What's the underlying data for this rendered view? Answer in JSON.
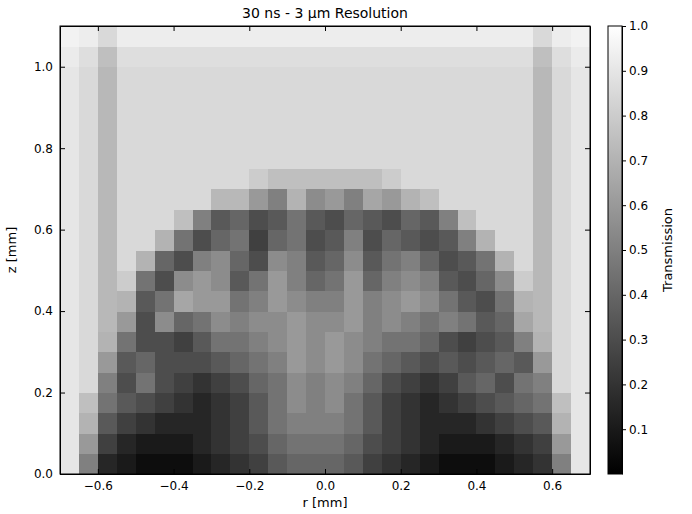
{
  "chart_data": {
    "type": "heatmap",
    "title": "30 ns - 3 μm Resolution",
    "x_label": "r [mm]",
    "y_label": "z [mm]",
    "xlim": [
      -0.7,
      0.7
    ],
    "ylim": [
      0,
      1.1
    ],
    "xticks": [
      {
        "value": -0.6,
        "label": "−0.6"
      },
      {
        "value": -0.4,
        "label": "−0.4"
      },
      {
        "value": -0.2,
        "label": "−0.2"
      },
      {
        "value": 0,
        "label": "0.0"
      },
      0.2,
      0.4,
      0.6
    ],
    "yticks": [
      {
        "value": 0,
        "label": "0.0"
      },
      0.2,
      0.4,
      0.6,
      0.8,
      {
        "value": 1,
        "label": "1.0"
      }
    ],
    "x": [
      -0.675,
      -0.625,
      -0.575,
      -0.525,
      -0.475,
      -0.425,
      -0.375,
      -0.325,
      -0.275,
      -0.225,
      -0.175,
      -0.125,
      -0.075,
      -0.025,
      0.025,
      0.075,
      0.125,
      0.175,
      0.225,
      0.275,
      0.325,
      0.375,
      0.425,
      0.475,
      0.525,
      0.575,
      0.625,
      0.675
    ],
    "y": [
      0.025,
      0.075,
      0.125,
      0.175,
      0.225,
      0.275,
      0.325,
      0.375,
      0.425,
      0.475,
      0.525,
      0.575,
      0.625,
      0.675,
      0.725,
      0.775,
      0.825,
      0.875,
      0.925,
      0.975,
      1.025,
      1.075
    ],
    "values": [
      [
        0.9,
        0.5,
        0.15,
        0.1,
        0.05,
        0.05,
        0.05,
        0.1,
        0.15,
        0.2,
        0.25,
        0.35,
        0.4,
        0.4,
        0.4,
        0.35,
        0.25,
        0.2,
        0.15,
        0.1,
        0.05,
        0.05,
        0.05,
        0.1,
        0.15,
        0.2,
        0.5,
        0.9
      ],
      [
        0.9,
        0.6,
        0.25,
        0.15,
        0.1,
        0.1,
        0.1,
        0.15,
        0.2,
        0.25,
        0.3,
        0.4,
        0.45,
        0.45,
        0.45,
        0.4,
        0.3,
        0.25,
        0.2,
        0.15,
        0.1,
        0.1,
        0.1,
        0.15,
        0.2,
        0.25,
        0.6,
        0.9
      ],
      [
        0.9,
        0.7,
        0.35,
        0.25,
        0.2,
        0.15,
        0.15,
        0.15,
        0.2,
        0.25,
        0.35,
        0.45,
        0.5,
        0.5,
        0.5,
        0.45,
        0.35,
        0.25,
        0.2,
        0.15,
        0.15,
        0.15,
        0.2,
        0.25,
        0.3,
        0.35,
        0.7,
        0.9
      ],
      [
        0.9,
        0.75,
        0.45,
        0.35,
        0.3,
        0.25,
        0.2,
        0.15,
        0.2,
        0.25,
        0.35,
        0.45,
        0.55,
        0.5,
        0.55,
        0.45,
        0.35,
        0.25,
        0.2,
        0.15,
        0.2,
        0.25,
        0.3,
        0.35,
        0.4,
        0.45,
        0.75,
        0.9
      ],
      [
        0.9,
        0.85,
        0.5,
        0.3,
        0.45,
        0.3,
        0.25,
        0.2,
        0.25,
        0.3,
        0.4,
        0.45,
        0.55,
        0.5,
        0.55,
        0.5,
        0.4,
        0.3,
        0.25,
        0.2,
        0.25,
        0.35,
        0.4,
        0.3,
        0.45,
        0.5,
        0.85,
        0.9
      ],
      [
        0.9,
        0.85,
        0.6,
        0.35,
        0.4,
        0.3,
        0.3,
        0.3,
        0.35,
        0.4,
        0.45,
        0.5,
        0.6,
        0.55,
        0.6,
        0.55,
        0.45,
        0.4,
        0.35,
        0.3,
        0.35,
        0.3,
        0.35,
        0.4,
        0.35,
        0.6,
        0.85,
        0.9
      ],
      [
        0.9,
        0.85,
        0.7,
        0.45,
        0.3,
        0.3,
        0.25,
        0.35,
        0.45,
        0.45,
        0.5,
        0.55,
        0.6,
        0.55,
        0.6,
        0.55,
        0.5,
        0.45,
        0.45,
        0.4,
        0.3,
        0.25,
        0.3,
        0.35,
        0.5,
        0.7,
        0.85,
        0.9
      ],
      [
        0.9,
        0.85,
        0.72,
        0.6,
        0.3,
        0.55,
        0.4,
        0.45,
        0.55,
        0.5,
        0.55,
        0.55,
        0.6,
        0.55,
        0.55,
        0.6,
        0.5,
        0.55,
        0.5,
        0.45,
        0.5,
        0.45,
        0.35,
        0.4,
        0.65,
        0.72,
        0.85,
        0.9
      ],
      [
        0.9,
        0.85,
        0.72,
        0.7,
        0.35,
        0.45,
        0.65,
        0.6,
        0.6,
        0.45,
        0.5,
        0.6,
        0.55,
        0.5,
        0.5,
        0.6,
        0.5,
        0.55,
        0.6,
        0.55,
        0.45,
        0.35,
        0.3,
        0.45,
        0.7,
        0.72,
        0.85,
        0.9
      ],
      [
        0.9,
        0.85,
        0.72,
        0.8,
        0.45,
        0.3,
        0.55,
        0.6,
        0.55,
        0.35,
        0.45,
        0.6,
        0.5,
        0.4,
        0.45,
        0.6,
        0.4,
        0.5,
        0.55,
        0.5,
        0.35,
        0.3,
        0.4,
        0.55,
        0.8,
        0.72,
        0.85,
        0.9
      ],
      [
        0.9,
        0.85,
        0.72,
        0.85,
        0.7,
        0.4,
        0.3,
        0.5,
        0.55,
        0.4,
        0.3,
        0.55,
        0.5,
        0.35,
        0.4,
        0.55,
        0.35,
        0.45,
        0.5,
        0.4,
        0.3,
        0.35,
        0.45,
        0.7,
        0.85,
        0.72,
        0.85,
        0.9
      ],
      [
        0.9,
        0.85,
        0.72,
        0.85,
        0.85,
        0.7,
        0.45,
        0.3,
        0.4,
        0.45,
        0.25,
        0.4,
        0.45,
        0.3,
        0.35,
        0.5,
        0.3,
        0.4,
        0.35,
        0.3,
        0.35,
        0.5,
        0.7,
        0.85,
        0.85,
        0.72,
        0.85,
        0.9
      ],
      [
        0.9,
        0.85,
        0.72,
        0.85,
        0.85,
        0.85,
        0.75,
        0.5,
        0.35,
        0.4,
        0.3,
        0.35,
        0.45,
        0.35,
        0.3,
        0.4,
        0.35,
        0.3,
        0.4,
        0.35,
        0.5,
        0.75,
        0.85,
        0.85,
        0.85,
        0.72,
        0.85,
        0.9
      ],
      [
        0.9,
        0.85,
        0.72,
        0.85,
        0.85,
        0.85,
        0.85,
        0.85,
        0.72,
        0.72,
        0.6,
        0.5,
        0.7,
        0.55,
        0.6,
        0.5,
        0.65,
        0.6,
        0.7,
        0.75,
        0.85,
        0.85,
        0.85,
        0.85,
        0.85,
        0.72,
        0.85,
        0.9
      ],
      [
        0.9,
        0.85,
        0.72,
        0.85,
        0.85,
        0.85,
        0.85,
        0.85,
        0.85,
        0.85,
        0.8,
        0.75,
        0.75,
        0.75,
        0.75,
        0.75,
        0.75,
        0.8,
        0.85,
        0.85,
        0.85,
        0.85,
        0.85,
        0.85,
        0.85,
        0.72,
        0.85,
        0.9
      ],
      [
        0.9,
        0.85,
        0.72,
        0.85,
        0.85,
        0.85,
        0.85,
        0.85,
        0.85,
        0.85,
        0.85,
        0.85,
        0.85,
        0.85,
        0.85,
        0.85,
        0.85,
        0.85,
        0.85,
        0.85,
        0.85,
        0.85,
        0.85,
        0.85,
        0.85,
        0.72,
        0.85,
        0.9
      ],
      [
        0.9,
        0.85,
        0.72,
        0.85,
        0.85,
        0.85,
        0.85,
        0.85,
        0.85,
        0.85,
        0.85,
        0.85,
        0.85,
        0.85,
        0.85,
        0.85,
        0.85,
        0.85,
        0.85,
        0.85,
        0.85,
        0.85,
        0.85,
        0.85,
        0.85,
        0.72,
        0.85,
        0.9
      ],
      [
        0.9,
        0.85,
        0.72,
        0.85,
        0.85,
        0.85,
        0.85,
        0.85,
        0.85,
        0.85,
        0.85,
        0.85,
        0.85,
        0.85,
        0.85,
        0.85,
        0.85,
        0.85,
        0.85,
        0.85,
        0.85,
        0.85,
        0.85,
        0.85,
        0.85,
        0.72,
        0.85,
        0.9
      ],
      [
        0.9,
        0.85,
        0.72,
        0.85,
        0.85,
        0.85,
        0.85,
        0.85,
        0.85,
        0.85,
        0.85,
        0.85,
        0.85,
        0.85,
        0.85,
        0.85,
        0.85,
        0.85,
        0.85,
        0.85,
        0.85,
        0.85,
        0.85,
        0.85,
        0.85,
        0.72,
        0.85,
        0.9
      ],
      [
        0.9,
        0.85,
        0.72,
        0.85,
        0.85,
        0.85,
        0.85,
        0.85,
        0.85,
        0.85,
        0.85,
        0.85,
        0.85,
        0.85,
        0.85,
        0.85,
        0.85,
        0.85,
        0.85,
        0.85,
        0.85,
        0.85,
        0.85,
        0.85,
        0.85,
        0.72,
        0.85,
        0.9
      ],
      [
        0.92,
        0.87,
        0.75,
        0.87,
        0.87,
        0.87,
        0.87,
        0.87,
        0.87,
        0.87,
        0.87,
        0.87,
        0.87,
        0.87,
        0.87,
        0.87,
        0.87,
        0.87,
        0.87,
        0.87,
        0.87,
        0.87,
        0.87,
        0.87,
        0.87,
        0.75,
        0.87,
        0.92
      ],
      [
        0.95,
        0.93,
        0.85,
        0.93,
        0.93,
        0.93,
        0.93,
        0.93,
        0.93,
        0.93,
        0.93,
        0.93,
        0.93,
        0.93,
        0.93,
        0.93,
        0.93,
        0.93,
        0.93,
        0.93,
        0.93,
        0.93,
        0.93,
        0.93,
        0.93,
        0.85,
        0.93,
        0.95
      ]
    ],
    "colorbar": {
      "label": "Transmission",
      "range": [
        0,
        1
      ],
      "ticks": [
        0.1,
        0.2,
        0.3,
        0.4,
        0.5,
        0.6,
        0.7,
        0.8,
        0.9,
        {
          "value": 1,
          "label": "1.0"
        }
      ]
    }
  }
}
